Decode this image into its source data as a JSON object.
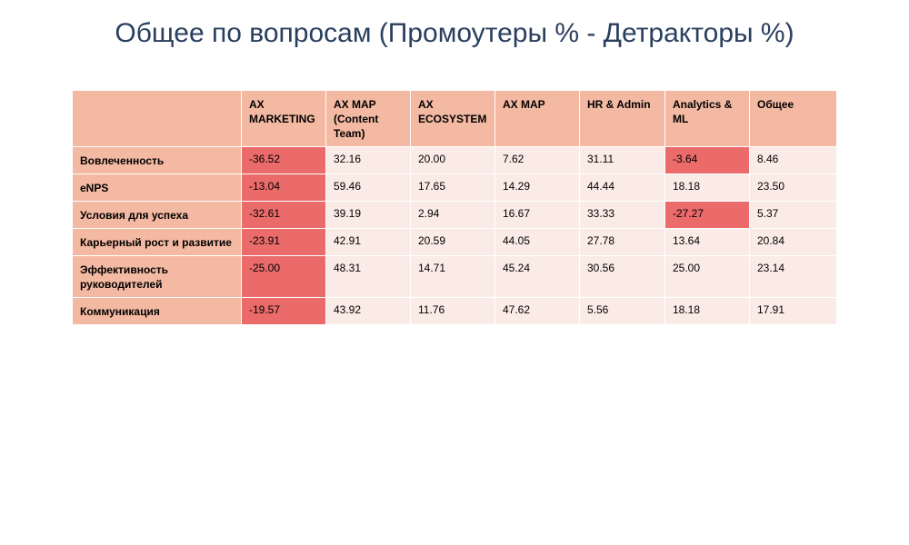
{
  "chart_data": {
    "type": "table",
    "title": "Общее по вопросам (Промоутеры % - Детракторы %)",
    "columns": [
      "",
      "AX MARKETING",
      "AX MAP (Content Team)",
      "AX ECOSYSTEM",
      "AX MAP",
      "HR & Admin",
      "Analytics & ML",
      "Общее"
    ],
    "rows": [
      {
        "label": "Вовлеченность",
        "values": [
          "-36.52",
          "32.16",
          "20.00",
          "7.62",
          "31.11",
          "-3.64",
          "8.46"
        ]
      },
      {
        "label": "eNPS",
        "values": [
          "-13.04",
          "59.46",
          "17.65",
          "14.29",
          "44.44",
          "18.18",
          "23.50"
        ]
      },
      {
        "label": "Условия для успеха",
        "values": [
          "-32.61",
          "39.19",
          "2.94",
          "16.67",
          "33.33",
          "-27.27",
          "5.37"
        ]
      },
      {
        "label": "Карьерный рост и развитие",
        "values": [
          "-23.91",
          "42.91",
          "20.59",
          "44.05",
          "27.78",
          "13.64",
          "20.84"
        ]
      },
      {
        "label": "Эффективность руководителей",
        "values": [
          "-25.00",
          "48.31",
          "14.71",
          "45.24",
          "30.56",
          "25.00",
          "23.14"
        ]
      },
      {
        "label": "Коммуникация",
        "values": [
          "-19.57",
          "43.92",
          "11.76",
          "47.62",
          "5.56",
          "18.18",
          "17.91"
        ]
      }
    ],
    "colors": {
      "header": "#f4b9a2",
      "cell": "#fbebe6",
      "negative_cell": "#eb6b6b",
      "title": "#2a3f5f"
    }
  }
}
